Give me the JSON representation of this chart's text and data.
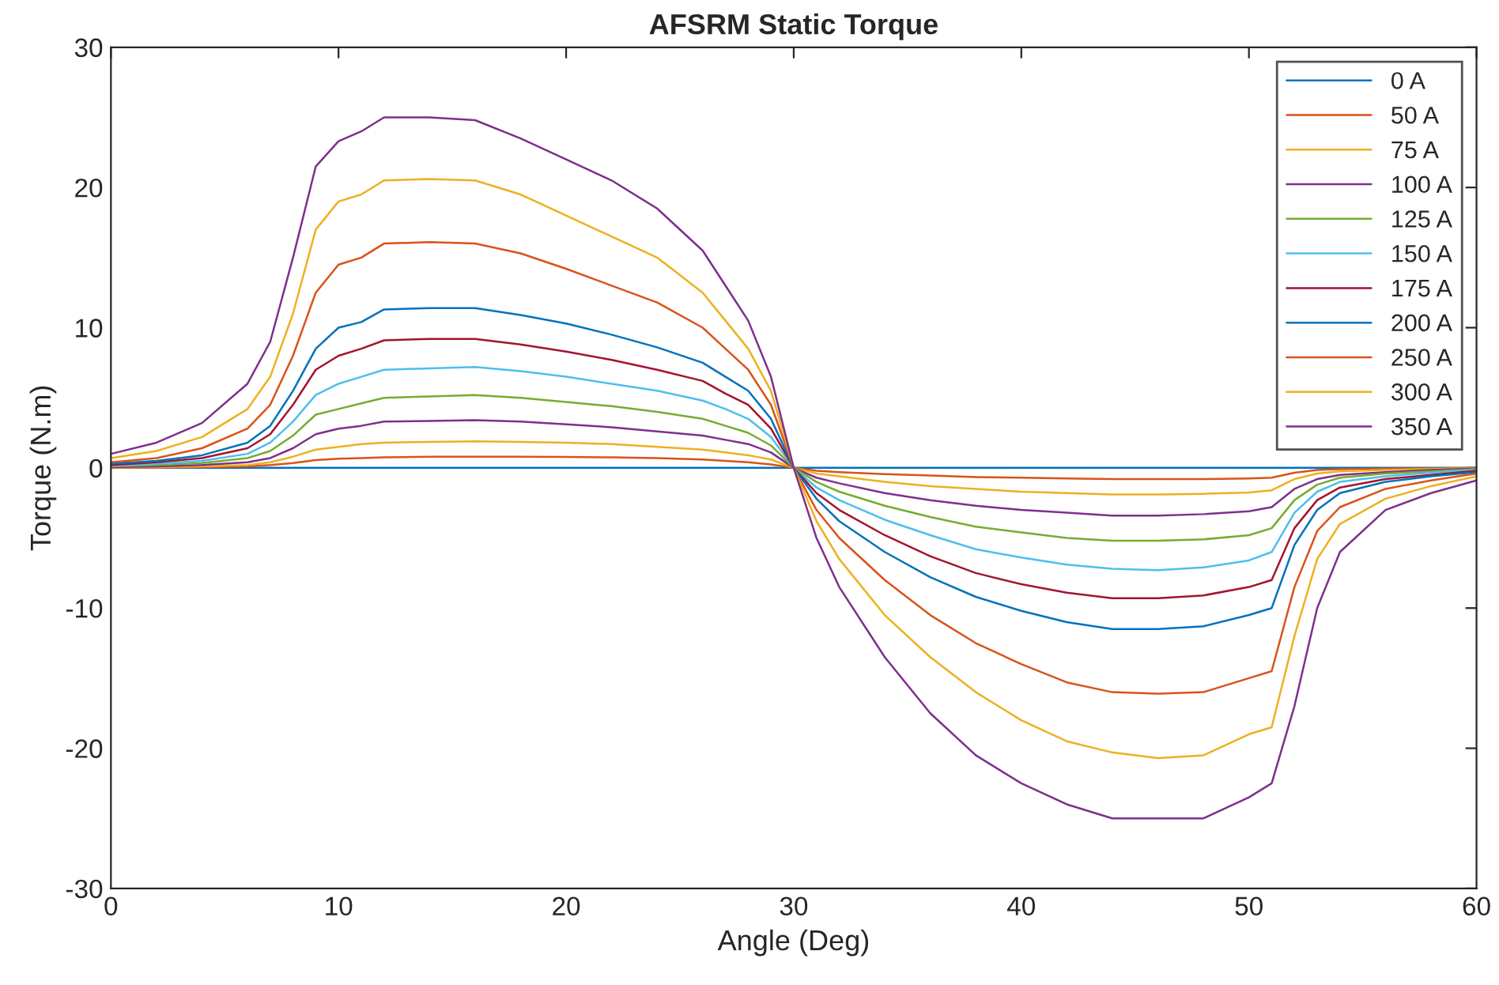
{
  "chart_data": {
    "type": "line",
    "title": "AFSRM Static Torque",
    "xlabel": "Angle (Deg)",
    "ylabel": "Torque (N.m)",
    "x": [
      0,
      2,
      4,
      6,
      7,
      8,
      9,
      10,
      11,
      12,
      14,
      16,
      18,
      20,
      22,
      24,
      26,
      27,
      28,
      29,
      30,
      31,
      32,
      34,
      36,
      38,
      40,
      42,
      44,
      46,
      48,
      50,
      51,
      52,
      53,
      54,
      56,
      58,
      60
    ],
    "xlim": [
      0,
      60
    ],
    "ylim": [
      -30,
      30
    ],
    "xticks": [
      0,
      10,
      20,
      30,
      40,
      50,
      60
    ],
    "yticks": [
      -30,
      -20,
      -10,
      0,
      10,
      20,
      30
    ],
    "grid": false,
    "legend": "top right",
    "marker": "none",
    "line_style": "solid",
    "series": [
      {
        "name": "0 A",
        "color": "#0072bd",
        "values": [
          0,
          0,
          0,
          0,
          0,
          0,
          0,
          0,
          0,
          0,
          0,
          0,
          0,
          0,
          0,
          0,
          0,
          0,
          0,
          0,
          0,
          0,
          0,
          0,
          0,
          0,
          0,
          0,
          0,
          0,
          0,
          0,
          0,
          0,
          0,
          0,
          0,
          0,
          0
        ]
      },
      {
        "name": "50 A",
        "color": "#d95319",
        "values": [
          0.01,
          0.02,
          0.05,
          0.1,
          0.2,
          0.35,
          0.55,
          0.65,
          0.7,
          0.75,
          0.8,
          0.8,
          0.8,
          0.78,
          0.75,
          0.7,
          0.6,
          0.5,
          0.4,
          0.25,
          0,
          -0.2,
          -0.3,
          -0.45,
          -0.55,
          -0.65,
          -0.7,
          -0.75,
          -0.8,
          -0.8,
          -0.8,
          -0.75,
          -0.7,
          -0.35,
          -0.15,
          -0.1,
          -0.05,
          -0.03,
          -0.01
        ]
      },
      {
        "name": "75 A",
        "color": "#edb120",
        "values": [
          0.03,
          0.05,
          0.1,
          0.2,
          0.4,
          0.8,
          1.3,
          1.5,
          1.7,
          1.8,
          1.85,
          1.9,
          1.85,
          1.8,
          1.7,
          1.5,
          1.3,
          1.1,
          0.9,
          0.6,
          0,
          -0.4,
          -0.6,
          -1.0,
          -1.3,
          -1.5,
          -1.7,
          -1.8,
          -1.9,
          -1.9,
          -1.85,
          -1.75,
          -1.6,
          -0.8,
          -0.4,
          -0.25,
          -0.15,
          -0.08,
          -0.03
        ]
      },
      {
        "name": "100 A",
        "color": "#7e2f8e",
        "values": [
          0.05,
          0.1,
          0.2,
          0.4,
          0.7,
          1.4,
          2.4,
          2.8,
          3.0,
          3.3,
          3.35,
          3.4,
          3.3,
          3.1,
          2.9,
          2.6,
          2.3,
          2.0,
          1.7,
          1.1,
          0,
          -0.7,
          -1.1,
          -1.8,
          -2.3,
          -2.7,
          -3.0,
          -3.2,
          -3.4,
          -3.4,
          -3.3,
          -3.1,
          -2.8,
          -1.5,
          -0.8,
          -0.5,
          -0.3,
          -0.15,
          -0.05
        ]
      },
      {
        "name": "125 A",
        "color": "#77ac30",
        "values": [
          0.1,
          0.2,
          0.35,
          0.7,
          1.2,
          2.3,
          3.8,
          4.2,
          4.6,
          5.0,
          5.1,
          5.2,
          5.0,
          4.7,
          4.4,
          4.0,
          3.5,
          3.0,
          2.5,
          1.6,
          0,
          -1.0,
          -1.7,
          -2.7,
          -3.5,
          -4.2,
          -4.6,
          -5.0,
          -5.2,
          -5.2,
          -5.1,
          -4.8,
          -4.3,
          -2.3,
          -1.2,
          -0.7,
          -0.4,
          -0.25,
          -0.1
        ]
      },
      {
        "name": "150 A",
        "color": "#4dbeee",
        "values": [
          0.15,
          0.3,
          0.5,
          1.0,
          1.8,
          3.3,
          5.2,
          6.0,
          6.5,
          7.0,
          7.1,
          7.2,
          6.9,
          6.5,
          6.0,
          5.5,
          4.8,
          4.2,
          3.5,
          2.2,
          0,
          -1.4,
          -2.3,
          -3.7,
          -4.8,
          -5.8,
          -6.4,
          -6.9,
          -7.2,
          -7.3,
          -7.1,
          -6.6,
          -6.0,
          -3.2,
          -1.7,
          -1.0,
          -0.6,
          -0.35,
          -0.15
        ]
      },
      {
        "name": "175 A",
        "color": "#a2142f",
        "values": [
          0.2,
          0.4,
          0.7,
          1.4,
          2.4,
          4.5,
          7.0,
          8.0,
          8.5,
          9.1,
          9.2,
          9.2,
          8.8,
          8.3,
          7.7,
          7.0,
          6.2,
          5.3,
          4.5,
          2.8,
          0,
          -1.8,
          -3.0,
          -4.8,
          -6.3,
          -7.5,
          -8.3,
          -8.9,
          -9.3,
          -9.3,
          -9.1,
          -8.5,
          -8.0,
          -4.3,
          -2.3,
          -1.4,
          -0.8,
          -0.5,
          -0.2
        ]
      },
      {
        "name": "200 A",
        "color": "#0072bd",
        "values": [
          0.3,
          0.5,
          0.9,
          1.8,
          3.0,
          5.5,
          8.5,
          10.0,
          10.4,
          11.3,
          11.4,
          11.4,
          10.9,
          10.3,
          9.5,
          8.6,
          7.5,
          6.5,
          5.5,
          3.5,
          0,
          -2.2,
          -3.8,
          -6.0,
          -7.8,
          -9.2,
          -10.2,
          -11.0,
          -11.5,
          -11.5,
          -11.3,
          -10.5,
          -10.0,
          -5.5,
          -3.0,
          -1.8,
          -1.0,
          -0.6,
          -0.3
        ]
      },
      {
        "name": "250 A",
        "color": "#d95319",
        "values": [
          0.4,
          0.7,
          1.4,
          2.8,
          4.5,
          8.0,
          12.5,
          14.5,
          15.0,
          16.0,
          16.1,
          16.0,
          15.3,
          14.2,
          13.0,
          11.8,
          10.0,
          8.5,
          7.0,
          4.5,
          0,
          -3.0,
          -5.0,
          -8.0,
          -10.5,
          -12.5,
          -14.0,
          -15.3,
          -16.0,
          -16.1,
          -16.0,
          -15.0,
          -14.5,
          -8.5,
          -4.5,
          -2.8,
          -1.5,
          -0.9,
          -0.4
        ]
      },
      {
        "name": "300 A",
        "color": "#edb120",
        "values": [
          0.7,
          1.2,
          2.2,
          4.2,
          6.5,
          11.0,
          17.0,
          19.0,
          19.5,
          20.5,
          20.6,
          20.5,
          19.5,
          18.0,
          16.5,
          15.0,
          12.5,
          10.5,
          8.5,
          5.5,
          0,
          -3.8,
          -6.5,
          -10.5,
          -13.5,
          -16.0,
          -18.0,
          -19.5,
          -20.3,
          -20.7,
          -20.5,
          -19.0,
          -18.5,
          -12.0,
          -6.5,
          -4.0,
          -2.2,
          -1.3,
          -0.6
        ]
      },
      {
        "name": "350 A",
        "color": "#7e2f8e",
        "values": [
          1.0,
          1.8,
          3.2,
          6.0,
          9.0,
          15.0,
          21.5,
          23.3,
          24.0,
          25.0,
          25.0,
          24.8,
          23.5,
          22.0,
          20.5,
          18.5,
          15.5,
          13.0,
          10.5,
          6.5,
          0,
          -5.0,
          -8.5,
          -13.5,
          -17.5,
          -20.5,
          -22.5,
          -24.0,
          -25.0,
          -25.0,
          -25.0,
          -23.5,
          -22.5,
          -17.0,
          -10.0,
          -6.0,
          -3.0,
          -1.8,
          -0.9
        ]
      }
    ]
  }
}
